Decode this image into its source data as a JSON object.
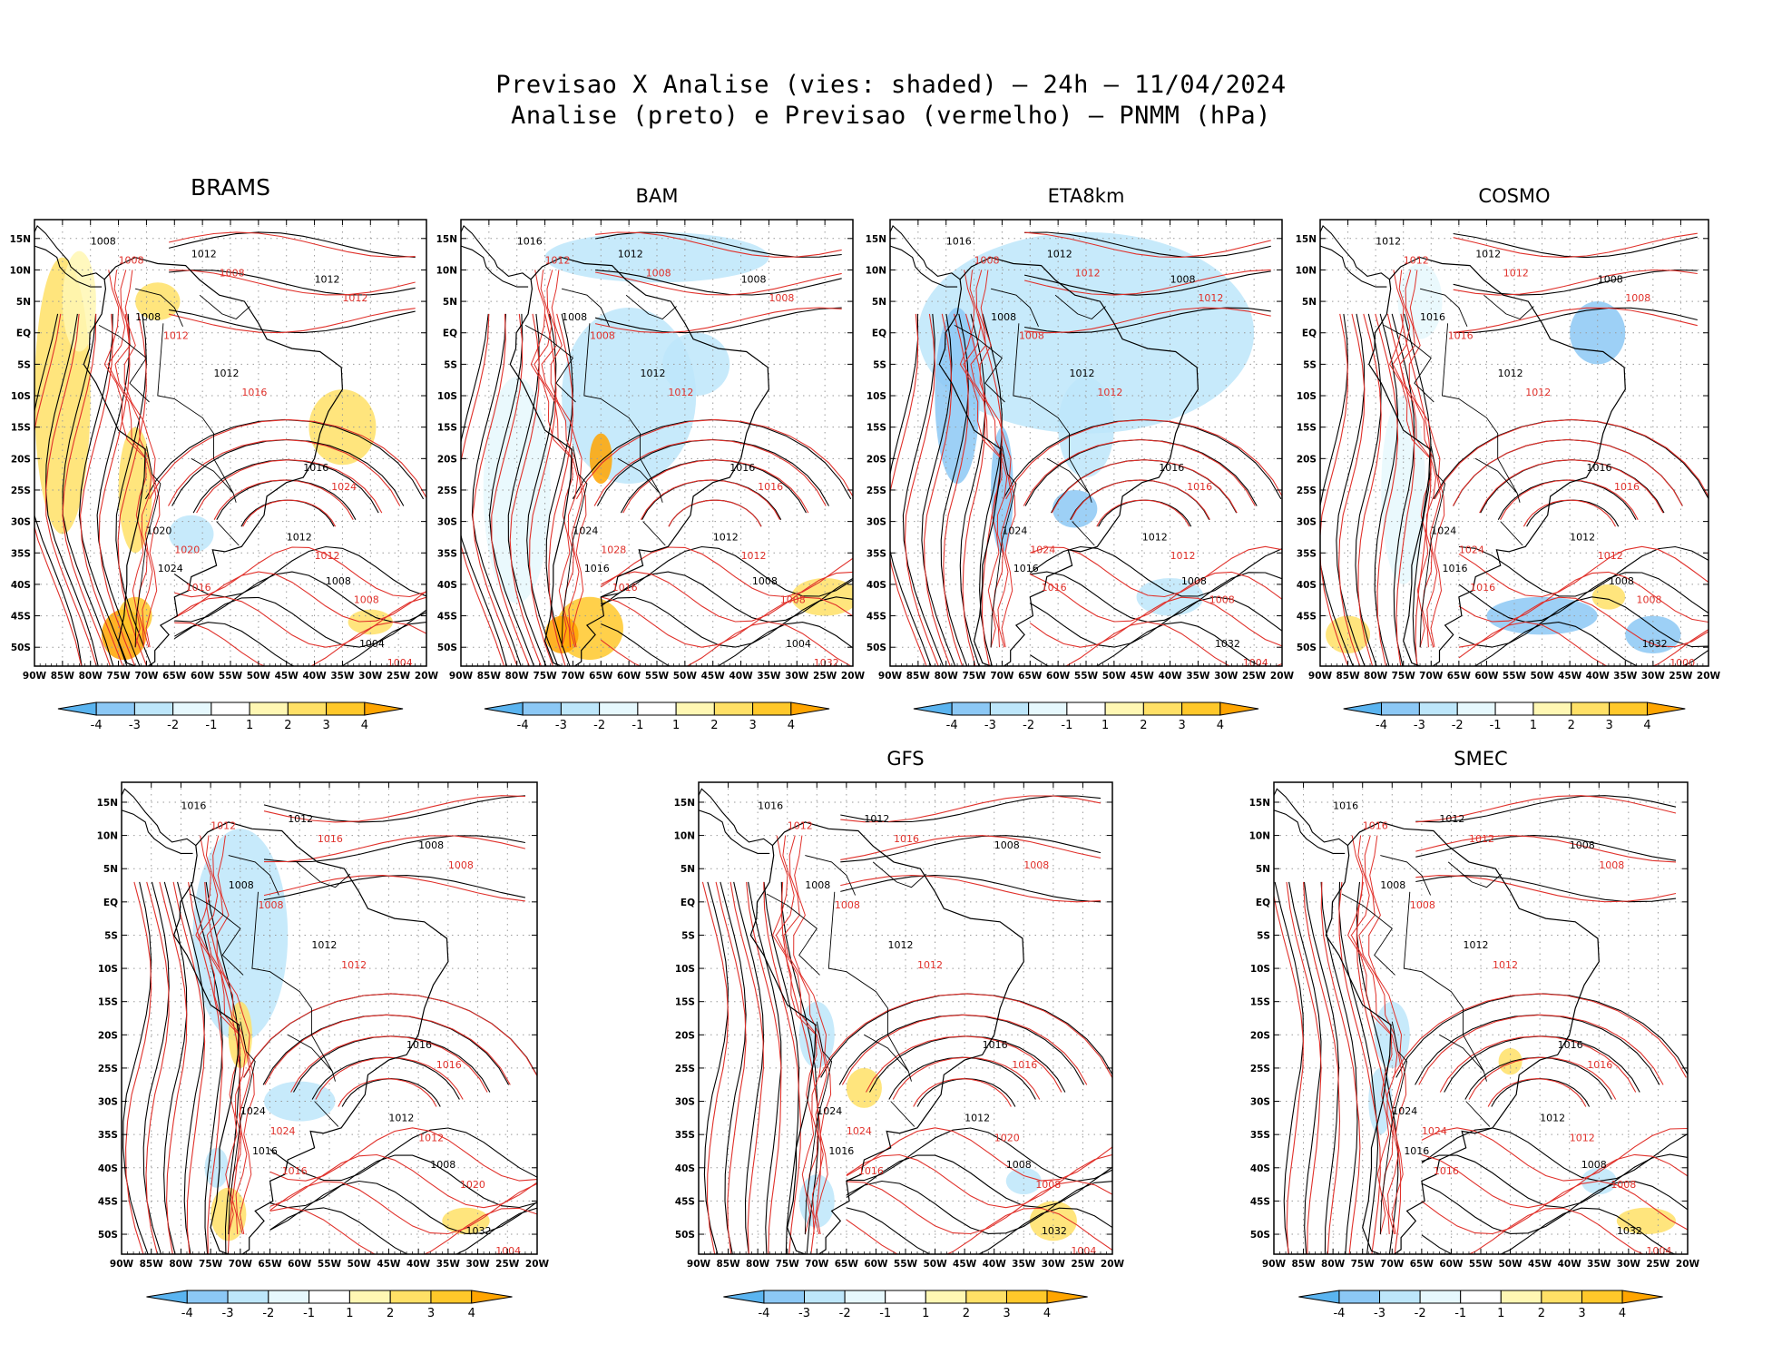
{
  "figure": {
    "title_line1": "Previsao X Analise (vies: shaded) – 24h – 11/04/2024",
    "title_line2": "Analise (preto) e Previsao (vermelho) – PNMM (hPa)"
  },
  "axes": {
    "lat_labels": [
      "15N",
      "10N",
      "5N",
      "EQ",
      "5S",
      "10S",
      "15S",
      "20S",
      "25S",
      "30S",
      "35S",
      "40S",
      "45S",
      "50S"
    ],
    "lon_labels": [
      "90W",
      "85W",
      "80W",
      "75W",
      "70W",
      "65W",
      "60W",
      "55W",
      "50W",
      "45W",
      "40W",
      "35W",
      "30W",
      "25W",
      "20W"
    ]
  },
  "colorbar": {
    "labels": [
      "-4",
      "-3",
      "-2",
      "-1",
      "1",
      "2",
      "3",
      "4"
    ],
    "colors": [
      "#5ab4f0",
      "#8cc8f5",
      "#bde6fa",
      "#e6f8fd",
      "#ffffff",
      "#fff7b3",
      "#ffe066",
      "#ffc82a",
      "#ffa500"
    ]
  },
  "isobar_colors": {
    "analysis": "#000000",
    "forecast": "#e0302a"
  },
  "panels": [
    {
      "title": "BRAMS",
      "contours": [
        [
          "1008",
          "1012",
          "1012",
          "1008",
          "1012",
          "1016",
          "1020",
          "1024",
          "1012",
          "1008",
          "1004"
        ],
        [
          "1008",
          "1008",
          "1012",
          "1012",
          "1016",
          "1024",
          "1020",
          "1016",
          "1012",
          "1008",
          "1004"
        ]
      ]
    },
    {
      "title": "BAM",
      "contours": [
        [
          "1016",
          "1012",
          "1008",
          "1008",
          "1012",
          "1016",
          "1024",
          "1016",
          "1012",
          "1008",
          "1004"
        ],
        [
          "1012",
          "1008",
          "1008",
          "1008",
          "1012",
          "1016",
          "1028",
          "1016",
          "1012",
          "1008",
          "1032"
        ]
      ]
    },
    {
      "title": "ETA8km",
      "contours": [
        [
          "1016",
          "1012",
          "1008",
          "1008",
          "1012",
          "1016",
          "1024",
          "1016",
          "1012",
          "1008",
          "1032"
        ],
        [
          "1008",
          "1012",
          "1012",
          "1008",
          "1012",
          "1016",
          "1024",
          "1016",
          "1012",
          "1008",
          "1004"
        ]
      ]
    },
    {
      "title": "COSMO",
      "contours": [
        [
          "1012",
          "1012",
          "1008",
          "1016",
          "1012",
          "1016",
          "1024",
          "1016",
          "1012",
          "1008",
          "1032"
        ],
        [
          "1012",
          "1012",
          "1008",
          "1016",
          "1012",
          "1016",
          "1024",
          "1016",
          "1012",
          "1008",
          "1000"
        ]
      ]
    },
    {
      "title": "",
      "contours": [
        [
          "1016",
          "1012",
          "1008",
          "1008",
          "1012",
          "1016",
          "1024",
          "1016",
          "1012",
          "1008",
          "1032"
        ],
        [
          "1012",
          "1016",
          "1008",
          "1008",
          "1012",
          "1016",
          "1024",
          "1016",
          "1012",
          "1020",
          "1004"
        ]
      ]
    },
    {
      "title": "GFS",
      "contours": [
        [
          "1016",
          "1012",
          "1008",
          "1008",
          "1012",
          "1016",
          "1024",
          "1016",
          "1012",
          "1008",
          "1032"
        ],
        [
          "1012",
          "1016",
          "1008",
          "1008",
          "1012",
          "1016",
          "1024",
          "1016",
          "1020",
          "1008",
          "1004"
        ]
      ]
    },
    {
      "title": "SMEC",
      "contours": [
        [
          "1016",
          "1012",
          "1008",
          "1008",
          "1012",
          "1016",
          "1024",
          "1016",
          "1012",
          "1008",
          "1032"
        ],
        [
          "1016",
          "1012",
          "1008",
          "1008",
          "1012",
          "1016",
          "1024",
          "1016",
          "1012",
          "1008",
          "1004"
        ]
      ]
    }
  ]
}
